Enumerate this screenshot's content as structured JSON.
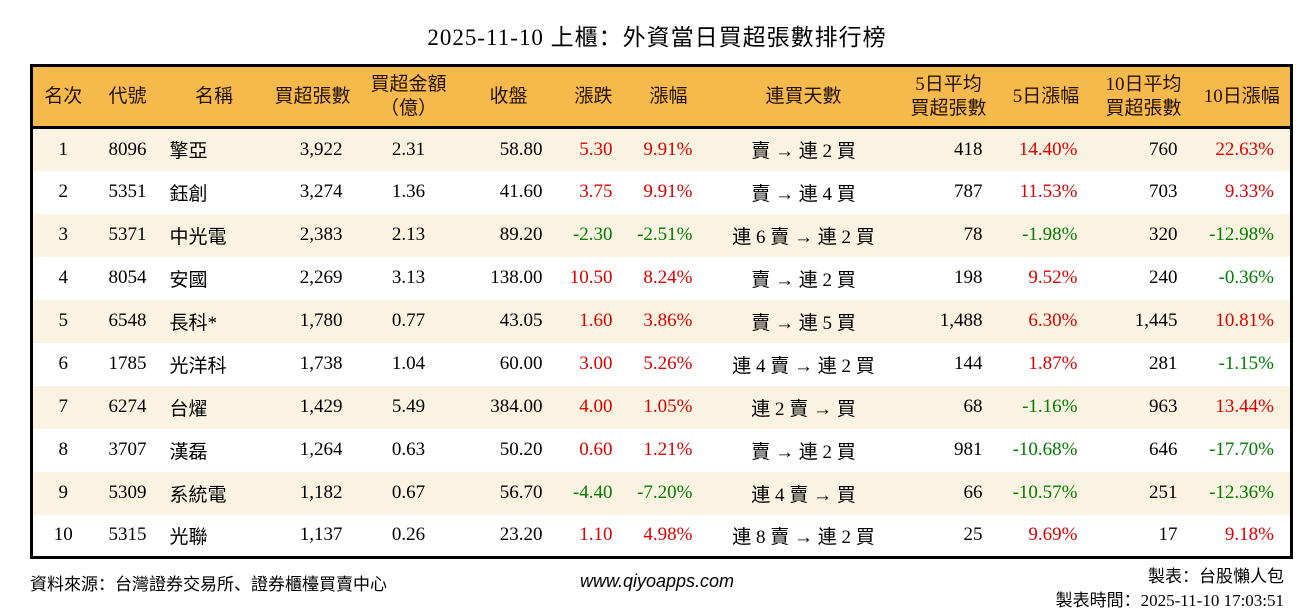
{
  "title": "2025-11-10 上櫃：外資當日買超張數排行榜",
  "colors": {
    "up": "#dd0000",
    "down": "#007c00",
    "header_bg": "#f6ba4c",
    "row_alt_bg": "#faf3e1",
    "border": "#000000"
  },
  "table": {
    "headers": [
      "名次",
      "代號",
      "名稱",
      "買超張數",
      "買超金額\n（億）",
      "收盤",
      "漲跌",
      "漲幅",
      "連買天數",
      "5日平均\n買超張數",
      "5日漲幅",
      "10日平均\n買超張數",
      "10日漲幅"
    ],
    "rows": [
      {
        "rank": "1",
        "code": "8096",
        "name": "擎亞",
        "vol": "3,922",
        "amt": "2.31",
        "close": "58.80",
        "chg": "5.30",
        "chg_pct": "9.91%",
        "streak": "賣 → 連 2 買",
        "avg5": "418",
        "pct5": "14.40%",
        "avg10": "760",
        "pct10": "22.63%"
      },
      {
        "rank": "2",
        "code": "5351",
        "name": "鈺創",
        "vol": "3,274",
        "amt": "1.36",
        "close": "41.60",
        "chg": "3.75",
        "chg_pct": "9.91%",
        "streak": "賣 → 連 4 買",
        "avg5": "787",
        "pct5": "11.53%",
        "avg10": "703",
        "pct10": "9.33%"
      },
      {
        "rank": "3",
        "code": "5371",
        "name": "中光電",
        "vol": "2,383",
        "amt": "2.13",
        "close": "89.20",
        "chg": "-2.30",
        "chg_pct": "-2.51%",
        "streak": "連 6 賣 → 連 2 買",
        "avg5": "78",
        "pct5": "-1.98%",
        "avg10": "320",
        "pct10": "-12.98%"
      },
      {
        "rank": "4",
        "code": "8054",
        "name": "安國",
        "vol": "2,269",
        "amt": "3.13",
        "close": "138.00",
        "chg": "10.50",
        "chg_pct": "8.24%",
        "streak": "賣 → 連 2 買",
        "avg5": "198",
        "pct5": "9.52%",
        "avg10": "240",
        "pct10": "-0.36%"
      },
      {
        "rank": "5",
        "code": "6548",
        "name": "長科*",
        "vol": "1,780",
        "amt": "0.77",
        "close": "43.05",
        "chg": "1.60",
        "chg_pct": "3.86%",
        "streak": "賣 → 連 5 買",
        "avg5": "1,488",
        "pct5": "6.30%",
        "avg10": "1,445",
        "pct10": "10.81%"
      },
      {
        "rank": "6",
        "code": "1785",
        "name": "光洋科",
        "vol": "1,738",
        "amt": "1.04",
        "close": "60.00",
        "chg": "3.00",
        "chg_pct": "5.26%",
        "streak": "連 4 賣 → 連 2 買",
        "avg5": "144",
        "pct5": "1.87%",
        "avg10": "281",
        "pct10": "-1.15%"
      },
      {
        "rank": "7",
        "code": "6274",
        "name": "台燿",
        "vol": "1,429",
        "amt": "5.49",
        "close": "384.00",
        "chg": "4.00",
        "chg_pct": "1.05%",
        "streak": "連 2 賣 → 買",
        "avg5": "68",
        "pct5": "-1.16%",
        "avg10": "963",
        "pct10": "13.44%"
      },
      {
        "rank": "8",
        "code": "3707",
        "name": "漢磊",
        "vol": "1,264",
        "amt": "0.63",
        "close": "50.20",
        "chg": "0.60",
        "chg_pct": "1.21%",
        "streak": "賣 → 連 2 買",
        "avg5": "981",
        "pct5": "-10.68%",
        "avg10": "646",
        "pct10": "-17.70%"
      },
      {
        "rank": "9",
        "code": "5309",
        "name": "系統電",
        "vol": "1,182",
        "amt": "0.67",
        "close": "56.70",
        "chg": "-4.40",
        "chg_pct": "-7.20%",
        "streak": "連 4 賣 → 買",
        "avg5": "66",
        "pct5": "-10.57%",
        "avg10": "251",
        "pct10": "-12.36%"
      },
      {
        "rank": "10",
        "code": "5315",
        "name": "光聯",
        "vol": "1,137",
        "amt": "0.26",
        "close": "23.20",
        "chg": "1.10",
        "chg_pct": "4.98%",
        "streak": "連 8 賣 → 連 2 買",
        "avg5": "25",
        "pct5": "9.69%",
        "avg10": "17",
        "pct10": "9.18%"
      }
    ]
  },
  "footer": {
    "source": "資料來源：台灣證券交易所、證券櫃檯買賣中心",
    "website": "www.qiyoapps.com",
    "credit": "製表：台股懶人包",
    "generated_at": "製表時間：2025-11-10 17:03:51"
  }
}
